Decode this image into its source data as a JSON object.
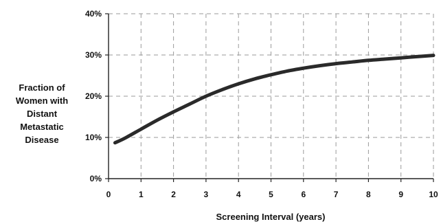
{
  "chart_data": {
    "type": "line",
    "title": "",
    "xlabel": "Screening Interval (years)",
    "ylabel_lines": [
      "Fraction of",
      "Women with",
      "Distant",
      "Metastatic",
      "Disease"
    ],
    "xlim": [
      0,
      10
    ],
    "ylim": [
      0,
      40
    ],
    "x_ticks": [
      "0",
      "1",
      "2",
      "3",
      "4",
      "5",
      "6",
      "7",
      "8",
      "9",
      "10"
    ],
    "y_ticks": [
      "0%",
      "10%",
      "20%",
      "30%",
      "40%"
    ],
    "grid": true,
    "series": [
      {
        "x": [
          0.2,
          0.5,
          1,
          1.5,
          2,
          2.5,
          3,
          3.5,
          4,
          4.5,
          5,
          5.5,
          6,
          6.5,
          7,
          7.5,
          8,
          8.5,
          9,
          9.5,
          10
        ],
        "y": [
          8.7,
          9.8,
          12.0,
          14.2,
          16.2,
          18.1,
          20.0,
          21.6,
          23.0,
          24.2,
          25.2,
          26.1,
          26.8,
          27.4,
          27.9,
          28.3,
          28.7,
          29.0,
          29.3,
          29.6,
          29.9
        ]
      }
    ],
    "colors": {
      "line": "#2a2a2a",
      "axis": "#222222",
      "grid": "#9a9a9a",
      "text": "#111111"
    }
  }
}
